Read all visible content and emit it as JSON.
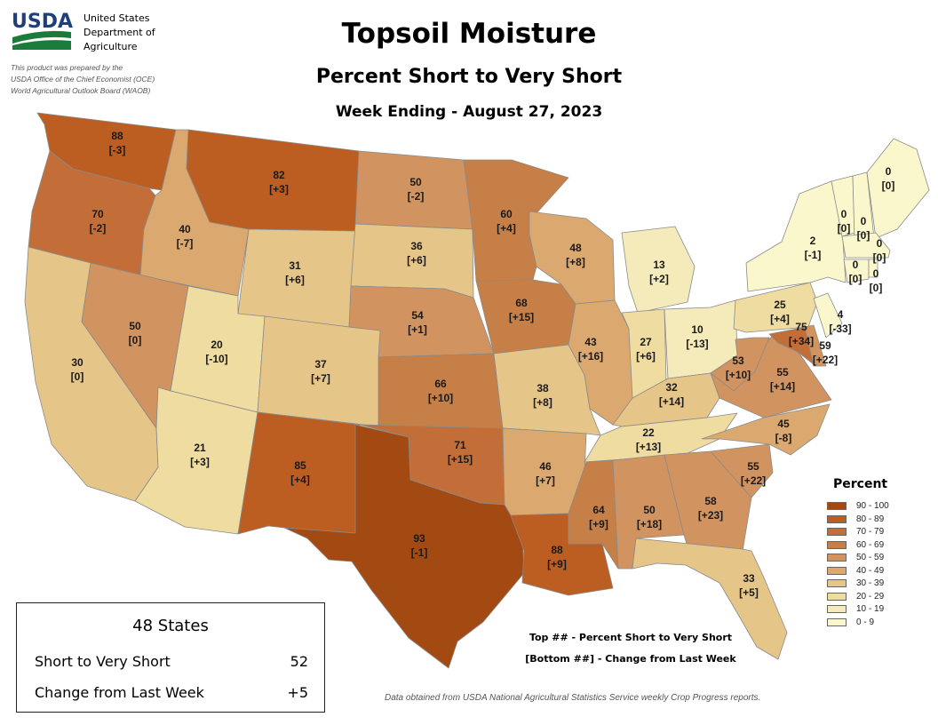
{
  "header": {
    "logo_text": "USDA",
    "org_lines": [
      "United States",
      "Department of",
      "Agriculture"
    ],
    "prepared_lines": [
      "This product was prepared by the",
      "USDA Office of the Chief Economist (OCE)",
      "World Agricultural Outlook Board (WAOB)"
    ]
  },
  "titles": {
    "main": "Topsoil Moisture",
    "sub": "Percent Short to Very Short",
    "week": "Week Ending - August 27, 2023"
  },
  "legend": {
    "title": "Percent",
    "classes": [
      {
        "label": "90 - 100",
        "color": "#a34a12"
      },
      {
        "label": "80 - 89",
        "color": "#bc5d21"
      },
      {
        "label": "70 - 79",
        "color": "#c36e38"
      },
      {
        "label": "60 - 69",
        "color": "#c57f47"
      },
      {
        "label": "50 - 59",
        "color": "#d1935f"
      },
      {
        "label": "40 - 49",
        "color": "#dba86f"
      },
      {
        "label": "30 - 39",
        "color": "#e6c589"
      },
      {
        "label": "20 - 29",
        "color": "#eedca1"
      },
      {
        "label": "10 - 19",
        "color": "#f5ebba"
      },
      {
        "label": "0 - 9",
        "color": "#fbf7cc"
      }
    ]
  },
  "notes": {
    "top": "Top ## - Percent Short to Very Short",
    "bottom": "[Bottom ##] - Change from Last Week"
  },
  "summary": {
    "title": "48 States",
    "rows": [
      {
        "label": "Short to Very Short",
        "value": "52"
      },
      {
        "label": "Change from Last Week",
        "value": "+5"
      }
    ]
  },
  "source": "Data obtained from USDA National Agricultural Statistics Service weekly Crop Progress reports.",
  "states": [
    {
      "id": "WA",
      "value": "88",
      "change": "[-3]"
    },
    {
      "id": "OR",
      "value": "70",
      "change": "[-2]"
    },
    {
      "id": "CA",
      "value": "30",
      "change": "[0]"
    },
    {
      "id": "ID",
      "value": "40",
      "change": "[-7]"
    },
    {
      "id": "NV",
      "value": "50",
      "change": "[0]"
    },
    {
      "id": "MT",
      "value": "82",
      "change": "[+3]"
    },
    {
      "id": "WY",
      "value": "31",
      "change": "[+6]"
    },
    {
      "id": "UT",
      "value": "20",
      "change": "[-10]"
    },
    {
      "id": "AZ",
      "value": "21",
      "change": "[+3]"
    },
    {
      "id": "CO",
      "value": "37",
      "change": "[+7]"
    },
    {
      "id": "NM",
      "value": "85",
      "change": "[+4]"
    },
    {
      "id": "ND",
      "value": "50",
      "change": "[-2]"
    },
    {
      "id": "SD",
      "value": "36",
      "change": "[+6]"
    },
    {
      "id": "NE",
      "value": "54",
      "change": "[+1]"
    },
    {
      "id": "KS",
      "value": "66",
      "change": "[+10]"
    },
    {
      "id": "OK",
      "value": "71",
      "change": "[+15]"
    },
    {
      "id": "TX",
      "value": "93",
      "change": "[-1]"
    },
    {
      "id": "MN",
      "value": "60",
      "change": "[+4]"
    },
    {
      "id": "IA",
      "value": "68",
      "change": "[+15]"
    },
    {
      "id": "MO",
      "value": "38",
      "change": "[+8]"
    },
    {
      "id": "AR",
      "value": "46",
      "change": "[+7]"
    },
    {
      "id": "LA",
      "value": "88",
      "change": "[+9]"
    },
    {
      "id": "WI",
      "value": "48",
      "change": "[+8]"
    },
    {
      "id": "IL",
      "value": "43",
      "change": "[+16]"
    },
    {
      "id": "MI",
      "value": "13",
      "change": "[+2]"
    },
    {
      "id": "IN",
      "value": "27",
      "change": "[+6]"
    },
    {
      "id": "OH",
      "value": "10",
      "change": "[-13]"
    },
    {
      "id": "KY",
      "value": "32",
      "change": "[+14]"
    },
    {
      "id": "TN",
      "value": "22",
      "change": "[+13]"
    },
    {
      "id": "MS",
      "value": "64",
      "change": "[+9]"
    },
    {
      "id": "AL",
      "value": "50",
      "change": "[+18]"
    },
    {
      "id": "GA",
      "value": "58",
      "change": "[+23]"
    },
    {
      "id": "FL",
      "value": "33",
      "change": "[+5]"
    },
    {
      "id": "SC",
      "value": "55",
      "change": "[+22]"
    },
    {
      "id": "NC",
      "value": "45",
      "change": "[-8]"
    },
    {
      "id": "VA",
      "value": "55",
      "change": "[+14]"
    },
    {
      "id": "WV",
      "value": "53",
      "change": "[+10]"
    },
    {
      "id": "PA",
      "value": "25",
      "change": "[+4]"
    },
    {
      "id": "NY",
      "value": "2",
      "change": "[-1]"
    },
    {
      "id": "MD",
      "value": "75",
      "change": "[+34]"
    },
    {
      "id": "DE",
      "value": "59",
      "change": "[+22]"
    },
    {
      "id": "NJ",
      "value": "4",
      "change": "[-33]"
    },
    {
      "id": "VT",
      "value": "0",
      "change": "[0]"
    },
    {
      "id": "NH",
      "value": "0",
      "change": "[0]"
    },
    {
      "id": "ME",
      "value": "0",
      "change": "[0]"
    },
    {
      "id": "MA",
      "value": "0",
      "change": "[0]"
    },
    {
      "id": "CT",
      "value": "0",
      "change": "[0]"
    },
    {
      "id": "RI",
      "value": "0",
      "change": "[0]"
    }
  ]
}
